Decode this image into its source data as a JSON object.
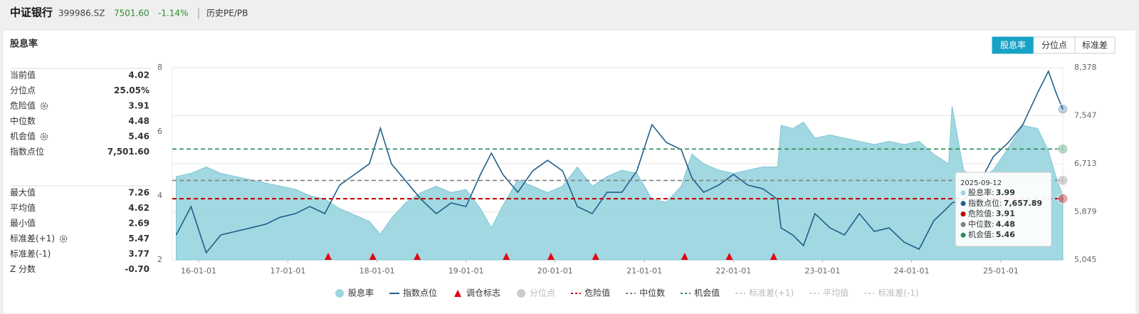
{
  "header": {
    "title": "中证银行",
    "code": "399986.SZ",
    "price": "7501.60",
    "change": "-1.14%",
    "link": "历史PE/PB"
  },
  "panel_title": "股息率",
  "tabs": [
    "股息率",
    "分位点",
    "标准差"
  ],
  "stats": [
    [
      {
        "label": "当前值",
        "value": "4.02"
      },
      {
        "label": "分位点",
        "value": "25.05%"
      },
      {
        "label": "危险值",
        "value": "3.91"
      },
      {
        "label": "中位数",
        "value": "4.48"
      },
      {
        "label": "机会值",
        "value": "5.46"
      },
      {
        "label": "指数点位",
        "value": "7,501.60"
      }
    ],
    [
      {
        "label": "最大值",
        "value": "7.26"
      },
      {
        "label": "平均值",
        "value": "4.62"
      },
      {
        "label": "最小值",
        "value": "2.69"
      },
      {
        "label": "标准差(+1)",
        "value": "5.47"
      },
      {
        "label": "标准差(-1)",
        "value": "3.77"
      },
      {
        "label": "Z 分数",
        "value": "-0.70"
      }
    ]
  ],
  "chart_data": {
    "type": "combo",
    "x": [
      "15-10-01",
      "15-12-01",
      "16-02-01",
      "16-04-01",
      "16-06-01",
      "16-08-01",
      "16-10-01",
      "16-12-01",
      "17-02-01",
      "17-04-01",
      "17-06-01",
      "17-08-01",
      "17-10-01",
      "17-12-01",
      "18-01-15",
      "18-03-01",
      "18-05-01",
      "18-07-01",
      "18-09-01",
      "18-11-01",
      "19-01-01",
      "19-03-01",
      "19-04-15",
      "19-06-01",
      "19-08-01",
      "19-10-01",
      "19-12-01",
      "20-02-01",
      "20-04-01",
      "20-06-01",
      "20-08-01",
      "20-10-01",
      "20-12-01",
      "21-02-01",
      "21-04-01",
      "21-06-01",
      "21-07-15",
      "21-09-01",
      "21-11-01",
      "22-01-01",
      "22-03-01",
      "22-05-01",
      "22-07-01",
      "22-07-15",
      "22-09-01",
      "22-10-15",
      "22-12-01",
      "23-02-01",
      "23-04-01",
      "23-06-01",
      "23-08-01",
      "23-10-01",
      "23-12-01",
      "24-02-01",
      "24-04-01",
      "24-06-01",
      "24-06-15",
      "24-08-01",
      "24-10-01",
      "24-12-01",
      "25-02-01",
      "25-04-01",
      "25-06-01",
      "25-07-15",
      "25-08-15",
      "25-09-12"
    ],
    "series": [
      {
        "name": "股息率",
        "type": "area",
        "color": "#9dd6df",
        "values": [
          4.6,
          4.7,
          4.9,
          4.7,
          4.6,
          4.5,
          4.4,
          4.3,
          4.2,
          4.0,
          3.9,
          3.6,
          3.4,
          3.2,
          2.8,
          3.3,
          3.8,
          4.1,
          4.3,
          4.1,
          4.2,
          3.6,
          3.0,
          3.7,
          4.5,
          4.3,
          4.1,
          4.3,
          4.9,
          4.3,
          4.6,
          4.8,
          4.7,
          3.9,
          3.8,
          4.3,
          5.3,
          5.0,
          4.8,
          4.7,
          4.8,
          4.9,
          4.9,
          6.2,
          6.1,
          6.3,
          5.8,
          5.9,
          5.8,
          5.7,
          5.6,
          5.7,
          5.6,
          5.7,
          5.3,
          5.0,
          6.8,
          4.8,
          4.5,
          4.8,
          5.5,
          6.2,
          6.1,
          5.4,
          4.6,
          3.99
        ]
      },
      {
        "name": "指数点位",
        "type": "line",
        "axis": "y2",
        "color": "#1f5f8b",
        "values": [
          5477,
          5970,
          5168,
          5477,
          5539,
          5600,
          5662,
          5785,
          5847,
          5970,
          5847,
          6341,
          6526,
          6711,
          7328,
          6711,
          6402,
          6094,
          5847,
          6032,
          5970,
          6526,
          6896,
          6526,
          6217,
          6587,
          6772,
          6587,
          5970,
          5847,
          6217,
          6217,
          6587,
          7390,
          7081,
          6958,
          6464,
          6217,
          6341,
          6526,
          6341,
          6279,
          6094,
          5600,
          5477,
          5292,
          5847,
          5600,
          5477,
          5847,
          5539,
          5600,
          5354,
          5230,
          5724,
          5970,
          6032,
          6094,
          6341,
          6834,
          7081,
          7390,
          7945,
          8316,
          7945,
          7657.89
        ]
      },
      {
        "name": "调仓标志",
        "type": "marker",
        "color": "#e60012",
        "x": [
          "17-06-15",
          "17-12-15",
          "18-06-15",
          "19-06-15",
          "19-12-15",
          "20-06-15",
          "21-06-15",
          "21-12-15",
          "22-06-15"
        ]
      },
      {
        "name": "分位点",
        "visible": false,
        "color": "#cccccc"
      }
    ],
    "reference_lines": [
      {
        "name": "危险值",
        "value": 3.91,
        "color": "#c00000"
      },
      {
        "name": "中位数",
        "value": 4.48,
        "color": "#808080"
      },
      {
        "name": "机会值",
        "value": 5.46,
        "color": "#2e8b57"
      },
      {
        "name": "标准差(+1)",
        "visible": false
      },
      {
        "name": "平均值",
        "visible": false
      },
      {
        "name": "标准差(-1)",
        "visible": false
      }
    ],
    "xlim": [
      "15-09-15",
      "25-09-12"
    ],
    "xticks": [
      "16-01-01",
      "17-01-01",
      "18-01-01",
      "19-01-01",
      "20-01-01",
      "21-01-01",
      "22-01-01",
      "23-01-01",
      "24-01-01",
      "25-01-01"
    ],
    "ylim": [
      2,
      8
    ],
    "yticks": [
      2,
      4,
      6,
      8
    ],
    "y2lim": [
      5045,
      8378
    ],
    "y2ticks": [
      {
        "value": 5045,
        "label": "5,045"
      },
      {
        "value": 5879,
        "label": "5,879"
      },
      {
        "value": 6713,
        "label": "6,713"
      },
      {
        "value": 7547,
        "label": "7,547"
      },
      {
        "value": 8378,
        "label": "8,378"
      }
    ],
    "grid": true
  },
  "tooltip": {
    "title": "2025-09-12",
    "items": [
      {
        "label": "股息率:",
        "value": "3.99",
        "color": "#9dd6df"
      },
      {
        "label": "指数点位:",
        "value": "7,657.89",
        "color": "#1f5f8b"
      },
      {
        "label": "危险值:",
        "value": "3.91",
        "color": "#c00000"
      },
      {
        "label": "中位数:",
        "value": "4.48",
        "color": "#808080"
      },
      {
        "label": "机会值:",
        "value": "5.46",
        "color": "#2e8b57"
      }
    ]
  }
}
